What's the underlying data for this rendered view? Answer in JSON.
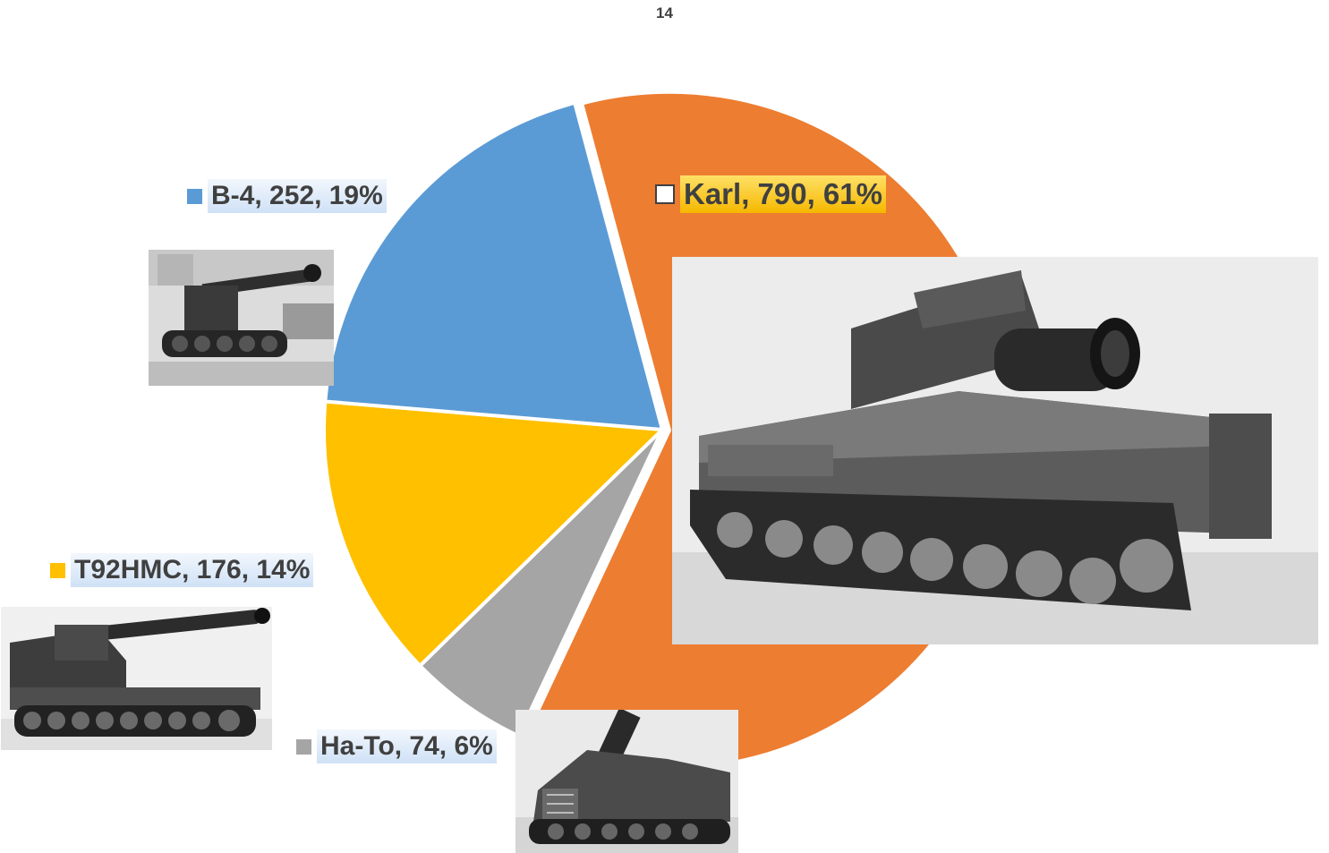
{
  "chart_data": {
    "type": "pie",
    "title": "14",
    "slices": [
      {
        "name": "Karl",
        "value": 790,
        "percent": "61%",
        "label": "Karl, 790, 61%",
        "color": "#ED7D31",
        "image": "karl-mortar-photo",
        "emphasized": true
      },
      {
        "name": "Ha-To",
        "value": 74,
        "percent": "6%",
        "label": "Ha-To, 74, 6%",
        "color": "#A5A5A5",
        "image": "ha-to-mortar-photo",
        "emphasized": false
      },
      {
        "name": "T92HMC",
        "value": 176,
        "percent": "14%",
        "label": "T92HMC, 176, 14%",
        "color": "#FFC000",
        "image": "t92hmc-howitzer-photo",
        "emphasized": false
      },
      {
        "name": "B-4",
        "value": 252,
        "percent": "19%",
        "label": "B-4, 252, 19%",
        "color": "#5B9BD5",
        "image": "b4-howitzer-photo",
        "emphasized": false
      }
    ],
    "legend": "none",
    "data_labels": "outside with category, value, percent"
  }
}
